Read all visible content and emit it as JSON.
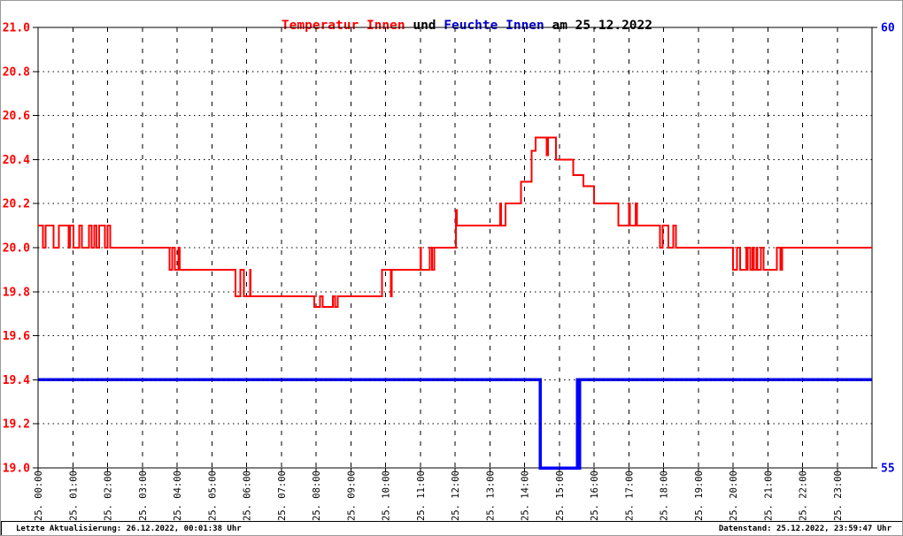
{
  "page": {
    "background": "#ffffff",
    "border_color": "#9a9a9a"
  },
  "title": {
    "parts": [
      {
        "text": "Temperatur Innen",
        "color": "#ff0000"
      },
      {
        "text": " und ",
        "color": "#000000"
      },
      {
        "text": "Feuchte Innen",
        "color": "#0000cc"
      },
      {
        "text": " am 25.12.2022",
        "color": "#000000"
      }
    ]
  },
  "status_bar": {
    "left": "Letzte Aktualisierung: 26.12.2022, 00:01:38 Uhr",
    "right": "Datenstand: 25.12.2022, 23:59:47 Uhr"
  },
  "chart_data": {
    "type": "line",
    "title": "Temperatur Innen und Feuchte Innen am 25.12.2022",
    "grid": {
      "horizontal": "dotted",
      "vertical": "dashed"
    },
    "x_axis": {
      "range_hours": [
        0,
        24
      ],
      "tick_labels": [
        "25. 00:00",
        "25. 01:00",
        "25. 02:00",
        "25. 03:00",
        "25. 04:00",
        "25. 05:00",
        "25. 06:00",
        "25. 07:00",
        "25. 08:00",
        "25. 09:00",
        "25. 10:00",
        "25. 11:00",
        "25. 12:00",
        "25. 13:00",
        "25. 14:00",
        "25. 15:00",
        "25. 16:00",
        "25. 17:00",
        "25. 18:00",
        "25. 19:00",
        "25. 20:00",
        "25. 21:00",
        "25. 22:00",
        "25. 23:00"
      ]
    },
    "y_left": {
      "min": 19.0,
      "max": 21.0,
      "tick_step": 0.2,
      "label_color": "#ff0000",
      "tick_labels": [
        "21.0",
        "20.8",
        "20.6",
        "20.4",
        "20.2",
        "20.0",
        "19.8",
        "19.6",
        "19.4",
        "19.2",
        "19.0"
      ]
    },
    "y_right": {
      "min": 55,
      "max": 60,
      "label_color": "#0000ee",
      "tick_labels": [
        "60",
        "55"
      ],
      "tick_values": [
        60,
        55
      ]
    },
    "series": [
      {
        "name": "Temperatur Innen",
        "axis": "left",
        "color": "#ff0000",
        "stroke_width": 2,
        "segments": [
          {
            "kind": "noise",
            "t0": 0.0,
            "t1": 2.2,
            "v": 20.0,
            "v2": 20.1,
            "bias": 0.5
          },
          {
            "kind": "flat",
            "t0": 2.2,
            "t1": 3.7,
            "v": 20.0
          },
          {
            "kind": "noise",
            "t0": 3.7,
            "t1": 4.4,
            "v": 19.9,
            "v2": 20.0,
            "bias": 0.6
          },
          {
            "kind": "flat",
            "t0": 4.4,
            "t1": 5.6,
            "v": 19.9
          },
          {
            "kind": "noise",
            "t0": 5.6,
            "t1": 6.15,
            "v": 19.78,
            "v2": 19.9,
            "bias": 0.6
          },
          {
            "kind": "flat",
            "t0": 6.15,
            "t1": 7.95,
            "v": 19.78
          },
          {
            "kind": "noise",
            "t0": 7.95,
            "t1": 8.65,
            "v": 19.78,
            "v2": 19.73,
            "bias": 0.45
          },
          {
            "kind": "flat",
            "t0": 8.65,
            "t1": 9.9,
            "v": 19.78
          },
          {
            "kind": "flat",
            "t0": 9.9,
            "t1": 10.12,
            "v": 19.9
          },
          {
            "kind": "spike",
            "t": 10.15,
            "v": 19.78
          },
          {
            "kind": "flat",
            "t0": 10.18,
            "t1": 11.0,
            "v": 19.9
          },
          {
            "kind": "noise",
            "t0": 11.0,
            "t1": 11.4,
            "v": 19.9,
            "v2": 20.0,
            "bias": 0.5
          },
          {
            "kind": "flat",
            "t0": 11.4,
            "t1": 12.0,
            "v": 20.0
          },
          {
            "kind": "spike",
            "t": 12.02,
            "v": 20.17
          },
          {
            "kind": "flat",
            "t0": 12.05,
            "t1": 13.28,
            "v": 20.1
          },
          {
            "kind": "spike",
            "t": 13.3,
            "v": 20.2
          },
          {
            "kind": "flat",
            "t0": 13.33,
            "t1": 13.45,
            "v": 20.1
          },
          {
            "kind": "flat",
            "t0": 13.45,
            "t1": 13.9,
            "v": 20.2
          },
          {
            "kind": "flat",
            "t0": 13.9,
            "t1": 14.2,
            "v": 20.3
          },
          {
            "kind": "flat",
            "t0": 14.2,
            "t1": 14.32,
            "v": 20.44
          },
          {
            "kind": "flat",
            "t0": 14.32,
            "t1": 14.62,
            "v": 20.5
          },
          {
            "kind": "spike",
            "t": 14.64,
            "v": 20.42
          },
          {
            "kind": "flat",
            "t0": 14.67,
            "t1": 14.9,
            "v": 20.5
          },
          {
            "kind": "flat",
            "t0": 14.9,
            "t1": 15.4,
            "v": 20.4
          },
          {
            "kind": "flat",
            "t0": 15.4,
            "t1": 15.7,
            "v": 20.33
          },
          {
            "kind": "flat",
            "t0": 15.7,
            "t1": 16.0,
            "v": 20.28
          },
          {
            "kind": "flat",
            "t0": 16.0,
            "t1": 16.7,
            "v": 20.2
          },
          {
            "kind": "flat",
            "t0": 16.7,
            "t1": 16.98,
            "v": 20.1
          },
          {
            "kind": "spike",
            "t": 17.0,
            "v": 20.2
          },
          {
            "kind": "flat",
            "t0": 17.03,
            "t1": 17.18,
            "v": 20.1
          },
          {
            "kind": "spike",
            "t": 17.2,
            "v": 20.2
          },
          {
            "kind": "flat",
            "t0": 17.23,
            "t1": 17.9,
            "v": 20.1
          },
          {
            "kind": "noise",
            "t0": 17.9,
            "t1": 18.45,
            "v": 20.0,
            "v2": 20.1,
            "bias": 0.55
          },
          {
            "kind": "flat",
            "t0": 18.45,
            "t1": 20.0,
            "v": 20.0
          },
          {
            "kind": "noise",
            "t0": 20.0,
            "t1": 21.5,
            "v": 20.0,
            "v2": 19.9,
            "bias": 0.55
          },
          {
            "kind": "flat",
            "t0": 21.5,
            "t1": 24.0,
            "v": 20.0
          }
        ]
      },
      {
        "name": "Feuchte Innen",
        "axis": "right",
        "color": "#0000ff",
        "stroke_width": 3.5,
        "segments": [
          {
            "kind": "flat",
            "t0": 0.0,
            "t1": 14.45,
            "v": 56
          },
          {
            "kind": "flat",
            "t0": 14.45,
            "t1": 15.5,
            "v": 55
          },
          {
            "kind": "noise",
            "t0": 15.5,
            "t1": 15.62,
            "v": 55,
            "v2": 56,
            "bias": 0.5
          },
          {
            "kind": "flat",
            "t0": 15.62,
            "t1": 24.0,
            "v": 56
          }
        ]
      }
    ]
  }
}
